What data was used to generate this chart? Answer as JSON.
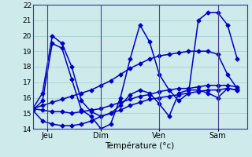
{
  "xlabel": "Température (°c)",
  "xlim": [
    0,
    22
  ],
  "ylim": [
    14,
    22
  ],
  "yticks": [
    14,
    15,
    16,
    17,
    18,
    19,
    20,
    21,
    22
  ],
  "xtick_positions": [
    1.5,
    7,
    13,
    19
  ],
  "xtick_labels": [
    "Jeu",
    "Dim",
    "Ven",
    "Sam"
  ],
  "background_color": "#ceeaea",
  "grid_color": "#aad4d4",
  "line_color": "#0000cc",
  "markersize": 2.5,
  "linewidth": 1.1,
  "series": [
    {
      "x": [
        0,
        1,
        2,
        3,
        4,
        5,
        6,
        7,
        8,
        9,
        10,
        11,
        12,
        13,
        14,
        15,
        16,
        17,
        18,
        19,
        20,
        21
      ],
      "y": [
        15.2,
        14.5,
        14.3,
        14.2,
        14.2,
        14.3,
        14.5,
        14.8,
        15.0,
        15.2,
        15.5,
        15.7,
        15.9,
        16.0,
        16.1,
        16.2,
        16.3,
        16.4,
        16.5,
        16.5,
        16.6,
        16.5
      ]
    },
    {
      "x": [
        0,
        1,
        2,
        3,
        4,
        5,
        6,
        7,
        8,
        9,
        10,
        11,
        12,
        13,
        14,
        15,
        16,
        17,
        18,
        19,
        20,
        21
      ],
      "y": [
        15.3,
        15.5,
        15.7,
        15.9,
        16.1,
        16.3,
        16.5,
        16.8,
        17.1,
        17.5,
        17.9,
        18.2,
        18.5,
        18.7,
        18.8,
        18.9,
        19.0,
        19.0,
        19.0,
        18.8,
        17.5,
        16.6
      ]
    },
    {
      "x": [
        0,
        1,
        2,
        3,
        4,
        5,
        6,
        7,
        8,
        9,
        10,
        11,
        12,
        13,
        14,
        15,
        16,
        17,
        18,
        19,
        20,
        21
      ],
      "y": [
        15.2,
        15.8,
        19.5,
        19.2,
        17.2,
        15.2,
        14.8,
        14.0,
        14.3,
        16.0,
        18.5,
        20.7,
        19.6,
        17.5,
        16.5,
        15.8,
        16.3,
        21.0,
        21.5,
        21.5,
        20.7,
        18.5
      ]
    },
    {
      "x": [
        0,
        1,
        2,
        3,
        4,
        5,
        6,
        7,
        8,
        9,
        10,
        11,
        12,
        13,
        14,
        15,
        16,
        17,
        18,
        19,
        20,
        21
      ],
      "y": [
        15.3,
        16.3,
        20.0,
        19.5,
        18.0,
        15.8,
        15.1,
        14.8,
        15.0,
        15.5,
        16.2,
        16.5,
        16.3,
        15.6,
        14.8,
        16.3,
        16.5,
        16.5,
        16.3,
        16.0,
        16.6,
        16.5
      ]
    },
    {
      "x": [
        0,
        1,
        2,
        3,
        4,
        5,
        6,
        7,
        8,
        9,
        10,
        11,
        12,
        13,
        14,
        15,
        16,
        17,
        18,
        19,
        20,
        21
      ],
      "y": [
        15.3,
        15.2,
        15.1,
        15.1,
        15.0,
        15.1,
        15.2,
        15.3,
        15.5,
        15.7,
        15.9,
        16.1,
        16.2,
        16.4,
        16.5,
        16.6,
        16.6,
        16.7,
        16.8,
        16.8,
        16.8,
        16.7
      ]
    }
  ]
}
